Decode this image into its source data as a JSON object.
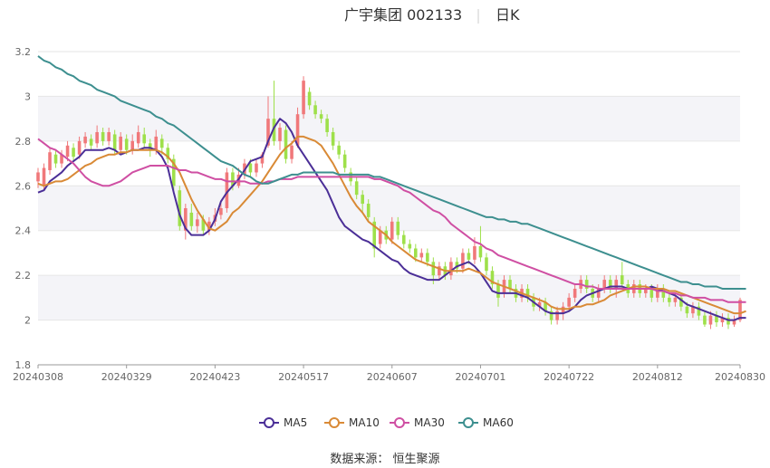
{
  "header": {
    "stock_name": "广宇集团 002133",
    "period": "日K"
  },
  "source": "数据来源： 恒生聚源",
  "colors": {
    "up": "#f0787a",
    "down": "#9ee04a",
    "ma5": "#4b2f97",
    "ma10": "#d98a36",
    "ma30": "#cf4fa3",
    "ma60": "#3d8f8f",
    "band": "#f4f4f8",
    "grid": "#e6e6e6"
  },
  "chart_data": {
    "type": "candlestick",
    "ylim": [
      1.8,
      3.2
    ],
    "yticks": [
      "1.8",
      "2",
      "2.2",
      "2.4",
      "2.6",
      "2.8",
      "3",
      "3.2"
    ],
    "xticks": [
      "20240308",
      "20240329",
      "20240423",
      "20240517",
      "20240607",
      "20240701",
      "20240722",
      "20240812",
      "20240830"
    ],
    "legend": [
      "MA5",
      "MA10",
      "MA30",
      "MA60"
    ],
    "legend_position": "bottom",
    "candles": [
      [
        "20240308",
        2.62,
        2.66,
        2.68,
        2.59
      ],
      [
        "",
        2.6,
        2.68,
        2.7,
        2.58
      ],
      [
        "",
        2.67,
        2.75,
        2.77,
        2.65
      ],
      [
        "",
        2.74,
        2.7,
        2.76,
        2.68
      ],
      [
        "",
        2.7,
        2.74,
        2.76,
        2.68
      ],
      [
        "",
        2.73,
        2.78,
        2.8,
        2.71
      ],
      [
        "",
        2.77,
        2.73,
        2.79,
        2.71
      ],
      [
        "",
        2.74,
        2.8,
        2.82,
        2.72
      ],
      [
        "",
        2.79,
        2.82,
        2.84,
        2.77
      ],
      [
        "",
        2.81,
        2.78,
        2.83,
        2.76
      ],
      [
        "",
        2.79,
        2.84,
        2.87,
        2.77
      ],
      [
        "",
        2.84,
        2.8,
        2.86,
        2.78
      ],
      [
        "",
        2.8,
        2.84,
        2.86,
        2.78
      ],
      [
        "",
        2.83,
        2.76,
        2.85,
        2.74
      ],
      [
        "",
        2.76,
        2.82,
        2.84,
        2.74
      ],
      [
        "20240329",
        2.81,
        2.76,
        2.83,
        2.74
      ],
      [
        "",
        2.76,
        2.8,
        2.83,
        2.74
      ],
      [
        "",
        2.79,
        2.84,
        2.87,
        2.77
      ],
      [
        "",
        2.83,
        2.79,
        2.86,
        2.77
      ],
      [
        "",
        2.79,
        2.76,
        2.81,
        2.73
      ],
      [
        "",
        2.76,
        2.82,
        2.85,
        2.74
      ],
      [
        "",
        2.81,
        2.77,
        2.83,
        2.74
      ],
      [
        "",
        2.77,
        2.72,
        2.79,
        2.7
      ],
      [
        "",
        2.72,
        2.6,
        2.74,
        2.58
      ],
      [
        "",
        2.58,
        2.42,
        2.6,
        2.4
      ],
      [
        "",
        2.4,
        2.5,
        2.52,
        2.36
      ],
      [
        "",
        2.48,
        2.42,
        2.52,
        2.4
      ],
      [
        "",
        2.42,
        2.45,
        2.48,
        2.39
      ],
      [
        "",
        2.45,
        2.4,
        2.47,
        2.38
      ],
      [
        "",
        2.4,
        2.44,
        2.46,
        2.38
      ],
      [
        "20240423",
        2.44,
        2.47,
        2.5,
        2.42
      ],
      [
        "",
        2.47,
        2.5,
        2.53,
        2.45
      ],
      [
        "",
        2.5,
        2.66,
        2.68,
        2.48
      ],
      [
        "",
        2.66,
        2.6,
        2.68,
        2.58
      ],
      [
        "",
        2.6,
        2.65,
        2.68,
        2.59
      ],
      [
        "",
        2.65,
        2.7,
        2.72,
        2.63
      ],
      [
        "",
        2.7,
        2.66,
        2.72,
        2.64
      ],
      [
        "",
        2.66,
        2.7,
        2.72,
        2.64
      ],
      [
        "",
        2.7,
        2.74,
        2.75,
        2.68
      ],
      [
        "",
        2.78,
        2.9,
        3.0,
        2.77
      ],
      [
        "",
        2.9,
        2.8,
        3.07,
        2.78
      ],
      [
        "",
        2.8,
        2.86,
        2.88,
        2.76
      ],
      [
        "",
        2.85,
        2.72,
        2.87,
        2.7
      ],
      [
        "",
        2.72,
        2.78,
        2.8,
        2.7
      ],
      [
        "",
        2.78,
        2.92,
        2.95,
        2.77
      ],
      [
        "20240517",
        2.92,
        3.07,
        3.09,
        2.9
      ],
      [
        "",
        3.02,
        2.96,
        3.04,
        2.94
      ],
      [
        "",
        2.96,
        2.92,
        2.98,
        2.9
      ],
      [
        "",
        2.92,
        2.9,
        2.94,
        2.88
      ],
      [
        "",
        2.9,
        2.84,
        2.92,
        2.82
      ],
      [
        "",
        2.84,
        2.78,
        2.86,
        2.76
      ],
      [
        "",
        2.78,
        2.74,
        2.8,
        2.72
      ],
      [
        "",
        2.74,
        2.68,
        2.76,
        2.66
      ],
      [
        "",
        2.66,
        2.62,
        2.68,
        2.6
      ],
      [
        "",
        2.62,
        2.56,
        2.64,
        2.54
      ],
      [
        "",
        2.56,
        2.52,
        2.58,
        2.48
      ],
      [
        "",
        2.52,
        2.46,
        2.54,
        2.44
      ],
      [
        "",
        2.44,
        2.32,
        2.46,
        2.28
      ],
      [
        "",
        2.34,
        2.4,
        2.42,
        2.32
      ],
      [
        "",
        2.4,
        2.36,
        2.42,
        2.34
      ],
      [
        "20240607",
        2.36,
        2.44,
        2.46,
        2.34
      ],
      [
        "",
        2.44,
        2.38,
        2.46,
        2.36
      ],
      [
        "",
        2.38,
        2.34,
        2.4,
        2.32
      ],
      [
        "",
        2.34,
        2.32,
        2.36,
        2.3
      ],
      [
        "",
        2.32,
        2.28,
        2.34,
        2.26
      ],
      [
        "",
        2.28,
        2.3,
        2.32,
        2.26
      ],
      [
        "",
        2.3,
        2.26,
        2.32,
        2.24
      ],
      [
        "",
        2.26,
        2.2,
        2.28,
        2.16
      ],
      [
        "",
        2.2,
        2.24,
        2.26,
        2.18
      ],
      [
        "",
        2.24,
        2.2,
        2.26,
        2.18
      ],
      [
        "",
        2.2,
        2.26,
        2.28,
        2.18
      ],
      [
        "",
        2.26,
        2.23,
        2.28,
        2.21
      ],
      [
        "",
        2.23,
        2.3,
        2.32,
        2.21
      ],
      [
        "",
        2.3,
        2.27,
        2.32,
        2.25
      ],
      [
        "",
        2.27,
        2.33,
        2.37,
        2.25
      ],
      [
        "20240701",
        2.33,
        2.28,
        2.42,
        2.26
      ],
      [
        "",
        2.28,
        2.22,
        2.3,
        2.2
      ],
      [
        "",
        2.22,
        2.16,
        2.24,
        2.14
      ],
      [
        "",
        2.16,
        2.1,
        2.18,
        2.06
      ],
      [
        "",
        2.12,
        2.18,
        2.2,
        2.1
      ],
      [
        "",
        2.18,
        2.14,
        2.2,
        2.12
      ],
      [
        "",
        2.14,
        2.1,
        2.16,
        2.08
      ],
      [
        "",
        2.1,
        2.14,
        2.16,
        2.08
      ],
      [
        "",
        2.14,
        2.1,
        2.16,
        2.08
      ],
      [
        "",
        2.1,
        2.06,
        2.12,
        2.04
      ],
      [
        "",
        2.06,
        2.08,
        2.1,
        2.04
      ],
      [
        "",
        2.08,
        2.04,
        2.1,
        2.02
      ],
      [
        "",
        2.04,
        2.0,
        2.06,
        1.98
      ],
      [
        "",
        2.0,
        2.04,
        2.06,
        1.98
      ],
      [
        "",
        2.03,
        2.06,
        2.08,
        2.0
      ],
      [
        "20240722",
        2.06,
        2.1,
        2.12,
        2.04
      ],
      [
        "",
        2.1,
        2.14,
        2.16,
        2.08
      ],
      [
        "",
        2.14,
        2.18,
        2.2,
        2.12
      ],
      [
        "",
        2.18,
        2.14,
        2.2,
        2.12
      ],
      [
        "",
        2.14,
        2.1,
        2.16,
        2.08
      ],
      [
        "",
        2.1,
        2.14,
        2.16,
        2.08
      ],
      [
        "",
        2.14,
        2.18,
        2.2,
        2.12
      ],
      [
        "",
        2.18,
        2.14,
        2.2,
        2.12
      ],
      [
        "",
        2.14,
        2.18,
        2.2,
        2.1
      ],
      [
        "",
        2.2,
        2.16,
        2.26,
        2.14
      ],
      [
        "",
        2.16,
        2.12,
        2.18,
        2.1
      ],
      [
        "",
        2.12,
        2.16,
        2.18,
        2.1
      ],
      [
        "",
        2.16,
        2.12,
        2.18,
        2.1
      ],
      [
        "",
        2.12,
        2.14,
        2.16,
        2.1
      ],
      [
        "",
        2.14,
        2.1,
        2.16,
        2.08
      ],
      [
        "20240812",
        2.1,
        2.14,
        2.16,
        2.08
      ],
      [
        "",
        2.14,
        2.1,
        2.16,
        2.08
      ],
      [
        "",
        2.1,
        2.08,
        2.12,
        2.06
      ],
      [
        "",
        2.08,
        2.1,
        2.12,
        2.06
      ],
      [
        "",
        2.1,
        2.06,
        2.12,
        2.04
      ],
      [
        "",
        2.06,
        2.03,
        2.08,
        2.01
      ],
      [
        "",
        2.03,
        2.06,
        2.08,
        2.01
      ],
      [
        "",
        2.06,
        2.02,
        2.08,
        2.0
      ],
      [
        "",
        2.02,
        1.98,
        2.04,
        1.97
      ],
      [
        "",
        1.98,
        2.02,
        2.04,
        1.96
      ],
      [
        "",
        2.02,
        1.99,
        2.04,
        1.97
      ],
      [
        "",
        1.99,
        2.01,
        2.03,
        1.97
      ],
      [
        "",
        2.01,
        1.98,
        2.03,
        1.96
      ],
      [
        "",
        1.98,
        2.0,
        2.02,
        1.97
      ],
      [
        "20240830",
        2.0,
        2.09,
        2.1,
        1.99
      ]
    ],
    "series": [
      {
        "name": "MA5",
        "values": [
          2.57,
          2.58,
          2.62,
          2.64,
          2.66,
          2.69,
          2.71,
          2.73,
          2.76,
          2.76,
          2.76,
          2.76,
          2.77,
          2.76,
          2.74,
          2.75,
          2.76,
          2.76,
          2.77,
          2.77,
          2.76,
          2.73,
          2.68,
          2.57,
          2.47,
          2.41,
          2.38,
          2.38,
          2.38,
          2.4,
          2.45,
          2.53,
          2.57,
          2.6,
          2.63,
          2.67,
          2.71,
          2.72,
          2.73,
          2.8,
          2.86,
          2.9,
          2.88,
          2.84,
          2.78,
          2.74,
          2.7,
          2.66,
          2.62,
          2.58,
          2.52,
          2.46,
          2.42,
          2.4,
          2.38,
          2.36,
          2.35,
          2.33,
          2.31,
          2.29,
          2.27,
          2.26,
          2.23,
          2.21,
          2.2,
          2.19,
          2.18,
          2.18,
          2.18,
          2.2,
          2.22,
          2.24,
          2.25,
          2.26,
          2.24,
          2.21,
          2.17,
          2.13,
          2.12,
          2.12,
          2.12,
          2.12,
          2.11,
          2.1,
          2.08,
          2.06,
          2.04,
          2.03,
          2.03,
          2.03,
          2.04,
          2.06,
          2.09,
          2.11,
          2.12,
          2.13,
          2.14,
          2.15,
          2.15,
          2.15,
          2.14,
          2.14,
          2.14,
          2.14,
          2.15,
          2.14,
          2.13,
          2.12,
          2.11,
          2.09,
          2.07,
          2.06,
          2.05,
          2.04,
          2.03,
          2.02,
          2.01,
          2.0,
          2.0,
          2.01,
          2.01
        ]
      },
      {
        "name": "MA10",
        "values": [
          2.61,
          2.6,
          2.61,
          2.62,
          2.62,
          2.63,
          2.65,
          2.67,
          2.69,
          2.7,
          2.72,
          2.73,
          2.74,
          2.74,
          2.75,
          2.75,
          2.76,
          2.76,
          2.76,
          2.76,
          2.76,
          2.75,
          2.73,
          2.7,
          2.66,
          2.6,
          2.54,
          2.49,
          2.45,
          2.41,
          2.4,
          2.42,
          2.44,
          2.48,
          2.5,
          2.53,
          2.56,
          2.59,
          2.62,
          2.66,
          2.7,
          2.74,
          2.77,
          2.79,
          2.82,
          2.82,
          2.81,
          2.8,
          2.78,
          2.74,
          2.7,
          2.65,
          2.6,
          2.55,
          2.51,
          2.48,
          2.44,
          2.42,
          2.4,
          2.38,
          2.35,
          2.33,
          2.31,
          2.29,
          2.27,
          2.26,
          2.25,
          2.24,
          2.23,
          2.22,
          2.22,
          2.22,
          2.22,
          2.23,
          2.22,
          2.21,
          2.19,
          2.17,
          2.16,
          2.15,
          2.14,
          2.13,
          2.12,
          2.11,
          2.1,
          2.09,
          2.08,
          2.06,
          2.05,
          2.05,
          2.05,
          2.06,
          2.06,
          2.07,
          2.07,
          2.08,
          2.09,
          2.11,
          2.12,
          2.13,
          2.14,
          2.15,
          2.15,
          2.15,
          2.14,
          2.14,
          2.14,
          2.13,
          2.13,
          2.12,
          2.11,
          2.1,
          2.09,
          2.08,
          2.07,
          2.06,
          2.05,
          2.04,
          2.03,
          2.03,
          2.04
        ]
      },
      {
        "name": "MA30",
        "values": [
          2.81,
          2.79,
          2.77,
          2.76,
          2.74,
          2.72,
          2.7,
          2.67,
          2.64,
          2.62,
          2.61,
          2.6,
          2.6,
          2.61,
          2.62,
          2.64,
          2.66,
          2.67,
          2.68,
          2.69,
          2.69,
          2.69,
          2.69,
          2.68,
          2.67,
          2.67,
          2.66,
          2.66,
          2.65,
          2.64,
          2.63,
          2.63,
          2.62,
          2.62,
          2.62,
          2.62,
          2.61,
          2.61,
          2.61,
          2.62,
          2.62,
          2.63,
          2.63,
          2.63,
          2.64,
          2.64,
          2.64,
          2.64,
          2.64,
          2.64,
          2.64,
          2.64,
          2.64,
          2.64,
          2.64,
          2.64,
          2.64,
          2.63,
          2.63,
          2.62,
          2.61,
          2.6,
          2.58,
          2.57,
          2.55,
          2.53,
          2.51,
          2.49,
          2.48,
          2.46,
          2.43,
          2.41,
          2.39,
          2.37,
          2.35,
          2.34,
          2.32,
          2.31,
          2.29,
          2.28,
          2.27,
          2.26,
          2.25,
          2.24,
          2.23,
          2.22,
          2.21,
          2.2,
          2.19,
          2.18,
          2.17,
          2.16,
          2.16,
          2.15,
          2.15,
          2.14,
          2.14,
          2.14,
          2.14,
          2.14,
          2.14,
          2.14,
          2.14,
          2.14,
          2.14,
          2.13,
          2.13,
          2.12,
          2.12,
          2.11,
          2.11,
          2.1,
          2.1,
          2.1,
          2.09,
          2.09,
          2.09,
          2.08,
          2.08,
          2.08,
          2.08
        ]
      },
      {
        "name": "MA60",
        "values": [
          3.18,
          3.16,
          3.15,
          3.13,
          3.12,
          3.1,
          3.09,
          3.07,
          3.06,
          3.05,
          3.03,
          3.02,
          3.01,
          3.0,
          2.98,
          2.97,
          2.96,
          2.95,
          2.94,
          2.93,
          2.91,
          2.9,
          2.88,
          2.87,
          2.85,
          2.83,
          2.81,
          2.79,
          2.77,
          2.75,
          2.73,
          2.71,
          2.7,
          2.69,
          2.67,
          2.65,
          2.64,
          2.62,
          2.61,
          2.61,
          2.62,
          2.63,
          2.64,
          2.65,
          2.65,
          2.66,
          2.66,
          2.66,
          2.66,
          2.66,
          2.66,
          2.65,
          2.65,
          2.65,
          2.65,
          2.65,
          2.65,
          2.64,
          2.64,
          2.63,
          2.62,
          2.61,
          2.6,
          2.59,
          2.58,
          2.57,
          2.56,
          2.55,
          2.54,
          2.53,
          2.52,
          2.51,
          2.5,
          2.49,
          2.48,
          2.47,
          2.46,
          2.46,
          2.45,
          2.45,
          2.44,
          2.44,
          2.43,
          2.43,
          2.42,
          2.41,
          2.4,
          2.39,
          2.38,
          2.37,
          2.36,
          2.35,
          2.34,
          2.33,
          2.32,
          2.31,
          2.3,
          2.29,
          2.28,
          2.27,
          2.26,
          2.25,
          2.24,
          2.23,
          2.22,
          2.21,
          2.2,
          2.19,
          2.18,
          2.17,
          2.17,
          2.16,
          2.16,
          2.15,
          2.15,
          2.15,
          2.14,
          2.14,
          2.14,
          2.14,
          2.14
        ]
      }
    ]
  }
}
